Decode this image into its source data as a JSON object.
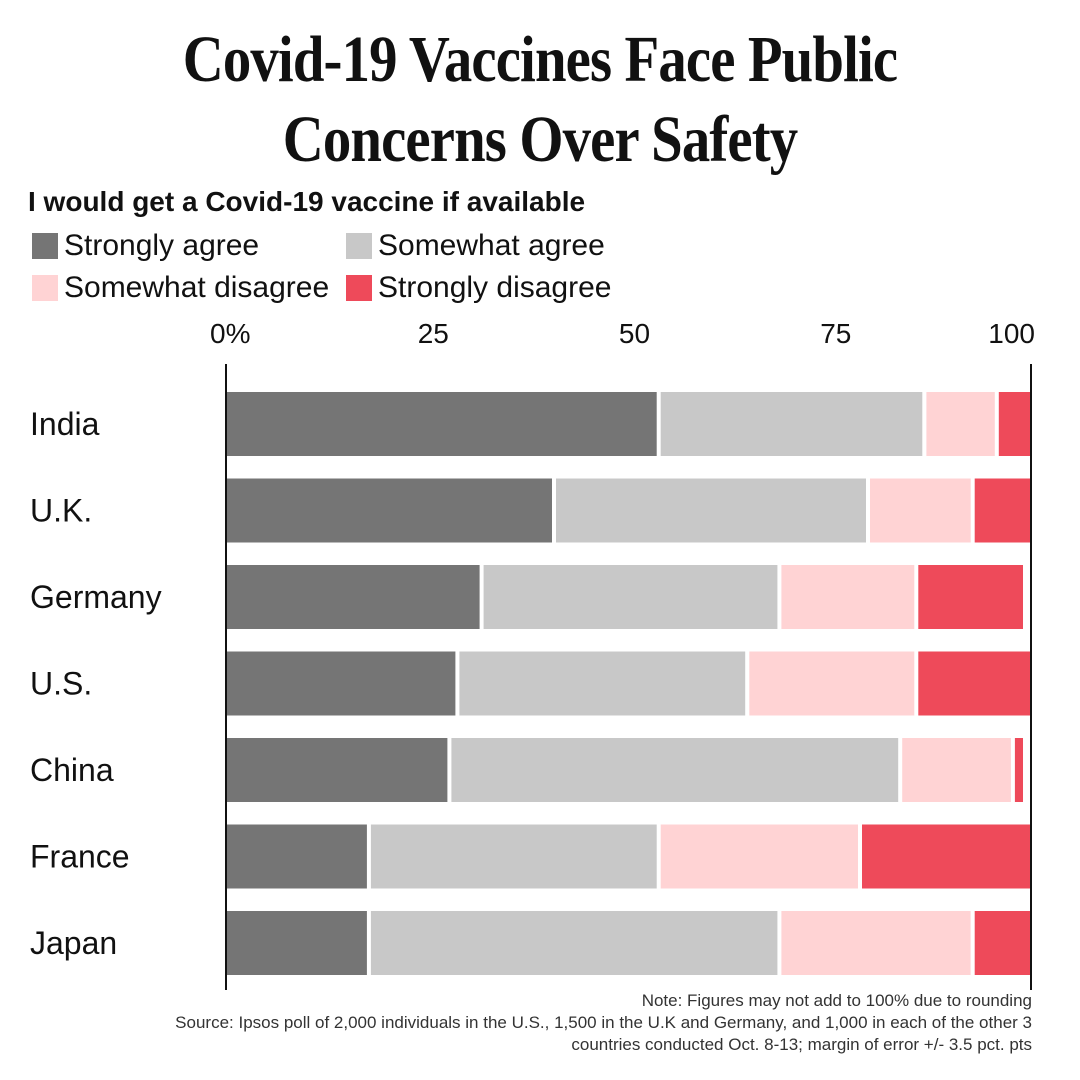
{
  "chart_data": {
    "type": "bar",
    "orientation": "horizontal",
    "stacked": true,
    "title_lines": [
      "Covid-19 Vaccines Face Public",
      "Concerns Over Safety"
    ],
    "subtitle": "I would get a Covid-19 vaccine if available",
    "x_tick_labels": [
      "0%",
      "25",
      "50",
      "75",
      "100"
    ],
    "x_ticks": [
      0,
      25,
      50,
      75,
      100
    ],
    "xlim": [
      0,
      100
    ],
    "categories": [
      "India",
      "U.K.",
      "Germany",
      "U.S.",
      "China",
      "France",
      "Japan"
    ],
    "series": [
      {
        "name": "Strongly agree",
        "color": "#757575",
        "values": [
          54,
          41,
          32,
          29,
          28,
          18,
          18
        ]
      },
      {
        "name": "Somewhat agree",
        "color": "#c8c8c8",
        "values": [
          33,
          39,
          37,
          36,
          56,
          36,
          51
        ]
      },
      {
        "name": "Somewhat disagree",
        "color": "#ffd3d4",
        "values": [
          9,
          13,
          17,
          21,
          14,
          25,
          24
        ]
      },
      {
        "name": "Strongly disagree",
        "color": "#ee4a5a",
        "values": [
          4,
          7,
          13,
          14,
          1,
          21,
          7
        ]
      }
    ],
    "notes": [
      "Note: Figures may not add to 100% due to rounding",
      "Source: Ipsos poll of  2,000 individuals in the U.S., 1,500 in the U.K and Germany, and 1,000 in each of the other 3",
      "countries conducted Oct. 8-13; margin of error +/- 3.5 pct. pts"
    ]
  }
}
